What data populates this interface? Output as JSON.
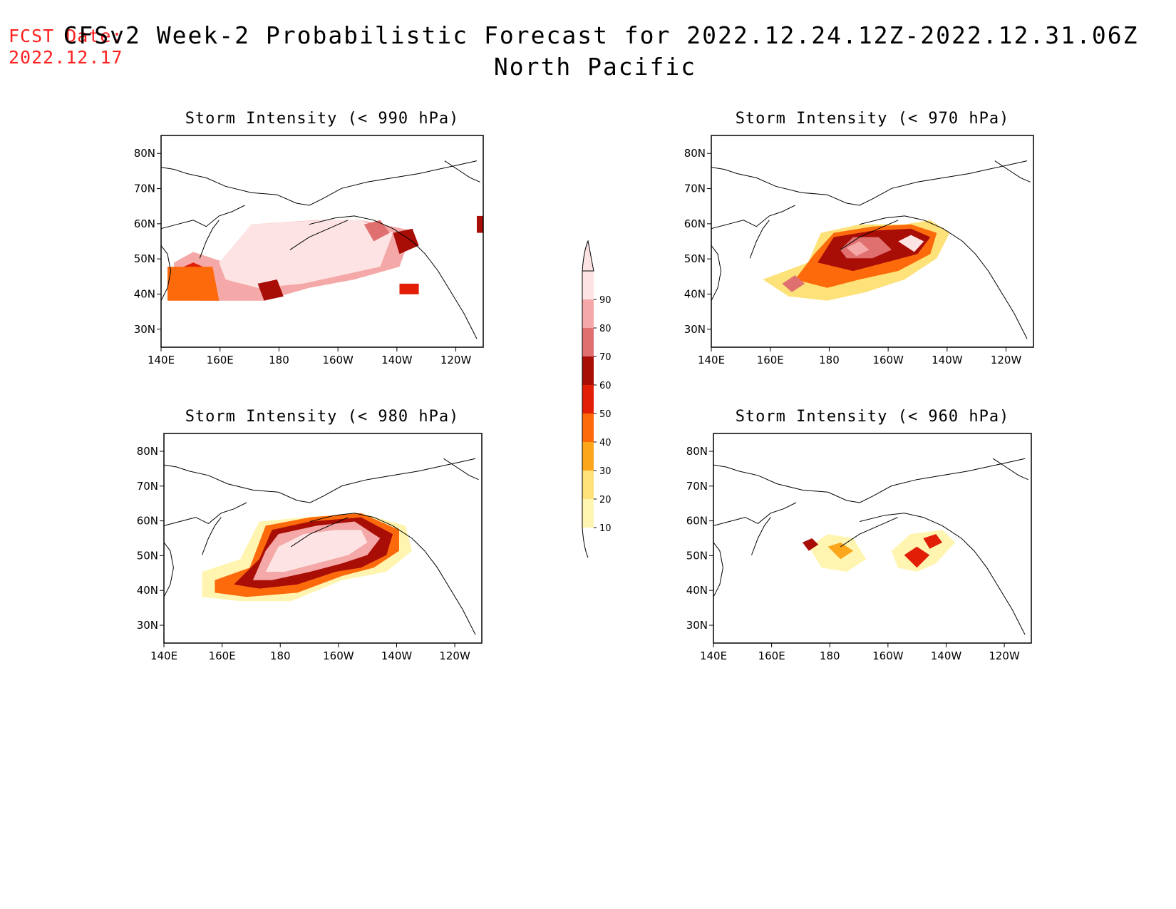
{
  "forecast_date": {
    "label": "FCST Date:",
    "value": "2022.12.17",
    "color": "#ff2020"
  },
  "title": {
    "line1": "CFSv2 Week-2 Probabilistic Forecast for 2022.12.24.12Z-2022.12.31.06Z",
    "line2": "North Pacific"
  },
  "axes": {
    "lat_ticks": [
      "80N",
      "70N",
      "60N",
      "50N",
      "40N",
      "30N"
    ],
    "lon_ticks": [
      "140E",
      "160E",
      "180",
      "160W",
      "140W",
      "120W"
    ]
  },
  "colorbar": {
    "levels": [
      "10",
      "20",
      "30",
      "40",
      "50",
      "60",
      "70",
      "80",
      "90"
    ],
    "colors": [
      "#fff5b0",
      "#fde27a",
      "#fca61c",
      "#fd6a0b",
      "#e21e06",
      "#a80d06",
      "#e07070",
      "#f4a8a8",
      "#fde3e3"
    ]
  },
  "panels": [
    {
      "id": "990",
      "title": "Storm Intensity (< 990 hPa)"
    },
    {
      "id": "970",
      "title": "Storm Intensity (< 970 hPa)"
    },
    {
      "id": "980",
      "title": "Storm Intensity (< 980 hPa)"
    },
    {
      "id": "960",
      "title": "Storm Intensity (< 960 hPa)"
    }
  ]
}
